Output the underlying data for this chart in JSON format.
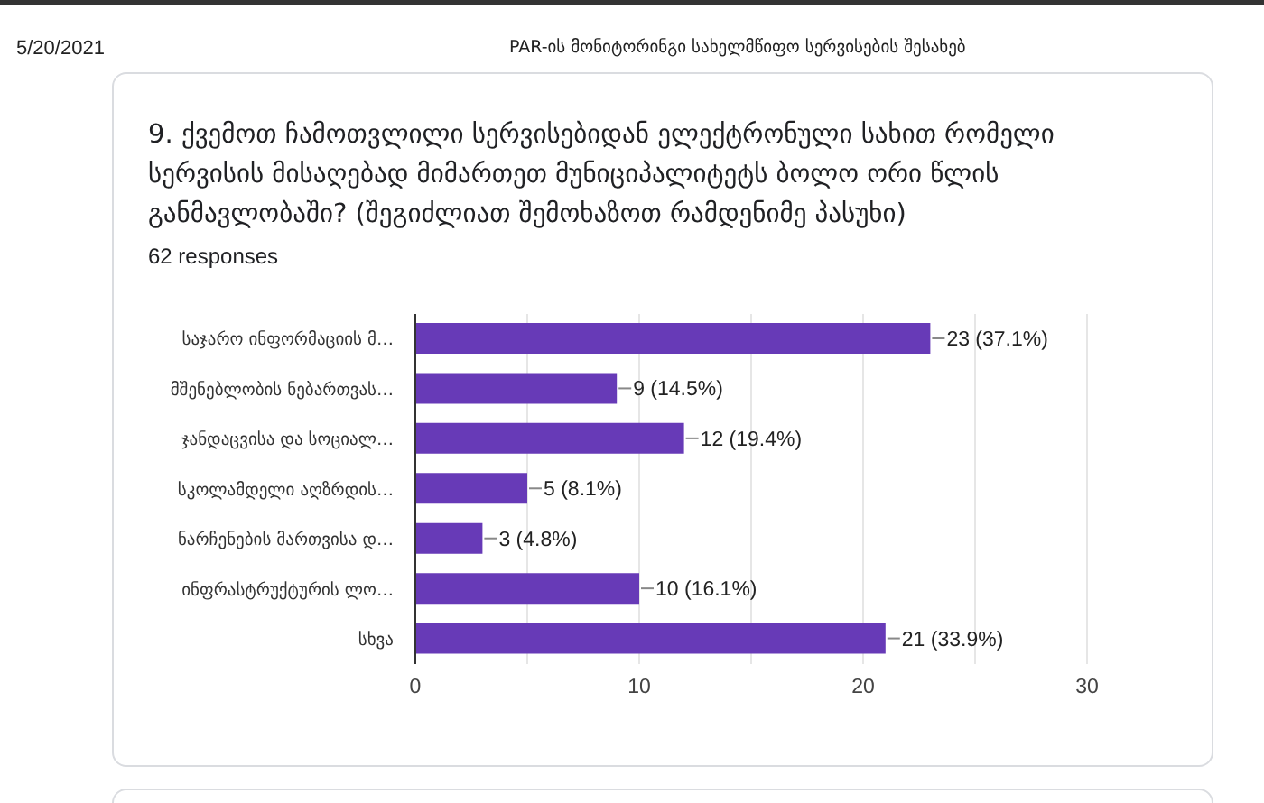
{
  "chart_data": {
    "type": "bar",
    "orientation": "horizontal",
    "title": "9. ქვემოთ ჩამოთვლილი სერვისებიდან ელექტრონული სახით რომელი სერვისის მისაღებად მიმართეთ მუნიციპალიტეტს ბოლო ორი წლის განმავლობაში? (შეგიძლიათ შემოხაზოთ რამდენიმე პასუხი)",
    "subtitle": "62 responses",
    "annotations": [
      "5/20/2021",
      "PAR-ის მონიტორინგი სახელმწიფო სერვისების შესახებ"
    ],
    "categories": [
      "საჯარო ინფორმაციის მ…",
      "მშენებლობის ნებართვას…",
      "ჯანდაცვისა და სოციალ…",
      "სკოლამდელი აღზრდის…",
      "ნარჩენების მართვისა დ…",
      "ინფრასტრუქტურის ლო…",
      "სხვა"
    ],
    "values": [
      23,
      9,
      12,
      5,
      3,
      10,
      21
    ],
    "value_labels": [
      "23 (37.1%)",
      "9 (14.5%)",
      "12 (19.4%)",
      "5 (8.1%)",
      "3 (4.8%)",
      "10 (16.1%)",
      "21 (33.9%)"
    ],
    "color": "#673ab7",
    "xlim": [
      0,
      30
    ],
    "xticks": [
      0,
      {
        "value": 5,
        "label": null
      },
      10,
      {
        "value": 15,
        "label": null
      },
      20,
      {
        "value": 25,
        "label": null
      },
      30
    ],
    "grid": "x"
  }
}
